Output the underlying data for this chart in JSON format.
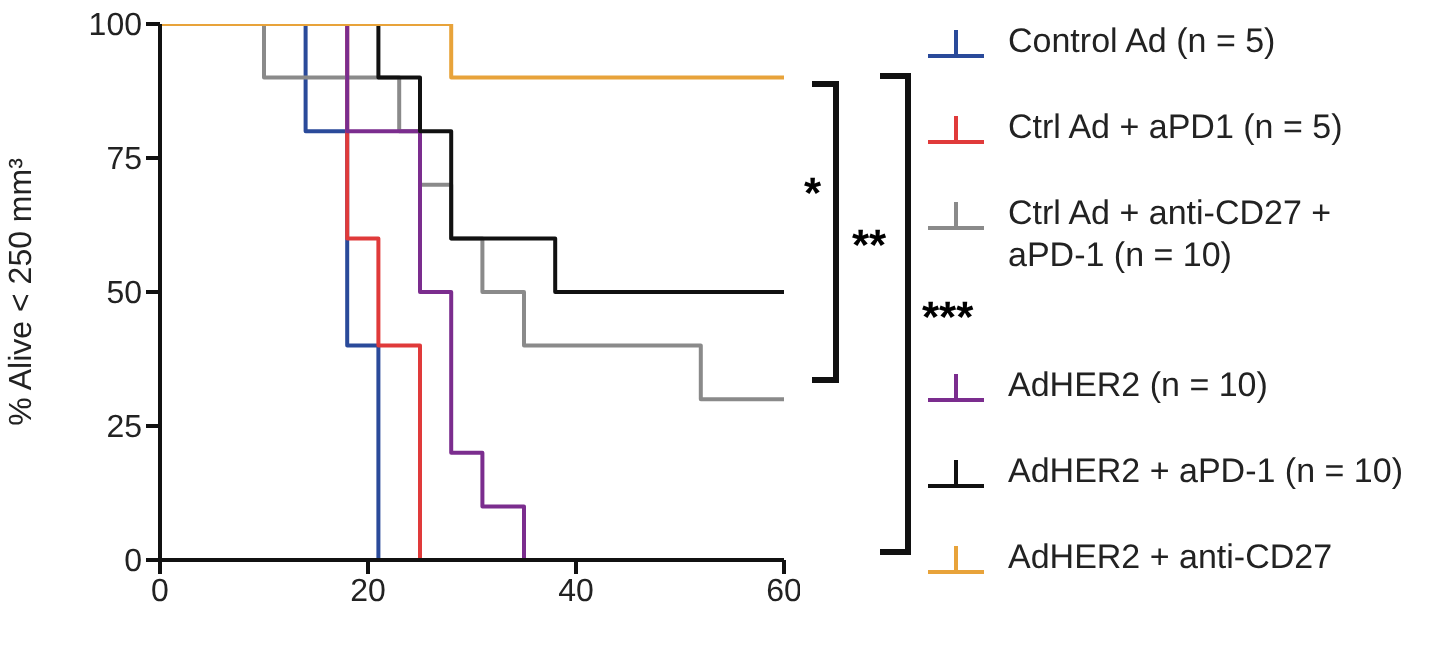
{
  "chart_data": {
    "type": "step",
    "ylabel": "% Alive < 250 mm³",
    "xlim": [
      0,
      60
    ],
    "xticks": [
      0,
      20,
      40,
      60
    ],
    "ylim": [
      0,
      100
    ],
    "yticks": [
      0,
      25,
      50,
      75,
      100
    ],
    "legend": "right",
    "marker": "none",
    "line_style": "solid",
    "annotations": [
      "*",
      "**",
      "***"
    ],
    "series": [
      {
        "name": "Control Ad (n = 5)",
        "color": "#2a4a9a",
        "x": [
          0,
          14,
          18,
          21
        ],
        "values": [
          100,
          80,
          40,
          0
        ]
      },
      {
        "name": "Ctrl Ad + aPD1 (n = 5)",
        "color": "#e03a3a",
        "x": [
          0,
          18,
          21,
          25
        ],
        "values": [
          100,
          60,
          40,
          0
        ]
      },
      {
        "name": "Ctrl Ad + anti-CD27 + aPD-1 (n = 10)",
        "color": "#8a8a8a",
        "x": [
          0,
          10,
          23,
          25,
          28,
          31,
          35,
          52,
          60
        ],
        "values": [
          100,
          90,
          80,
          70,
          60,
          50,
          40,
          30,
          30
        ]
      },
      {
        "name": "AdHER2 (n = 10)",
        "color": "#7b2d8e",
        "x": [
          0,
          18,
          25,
          28,
          31,
          35
        ],
        "values": [
          100,
          80,
          50,
          20,
          10,
          0
        ]
      },
      {
        "name": "AdHER2 + aPD-1 (n = 10)",
        "color": "#111111",
        "x": [
          0,
          21,
          25,
          28,
          38,
          60
        ],
        "values": [
          100,
          90,
          80,
          60,
          50,
          50
        ]
      },
      {
        "name": "AdHER2 + anti-CD27",
        "color": "#e8a33a",
        "x": [
          0,
          28,
          60
        ],
        "values": [
          100,
          90,
          90
        ]
      }
    ]
  }
}
